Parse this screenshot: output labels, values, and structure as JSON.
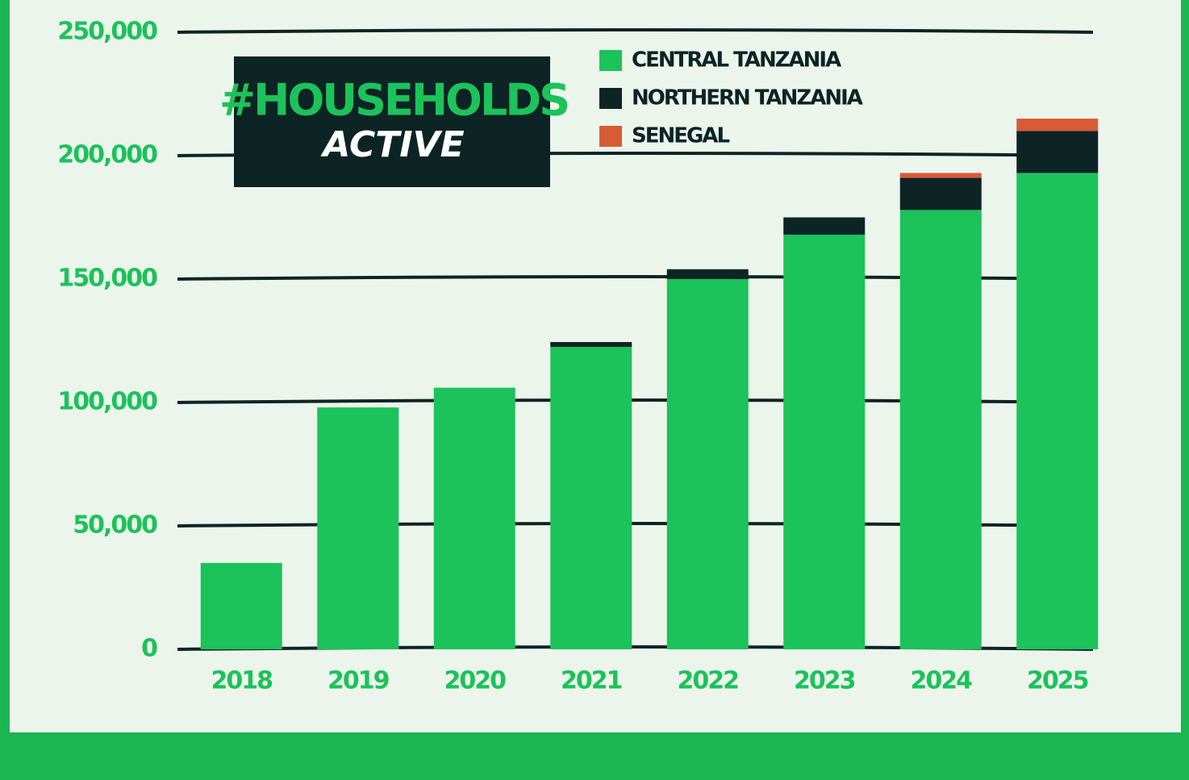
{
  "chart_data": {
    "type": "stacked-bar",
    "title": "#HOUSEHOLDS",
    "subtitle": "ACTIVE",
    "categories": [
      "2018",
      "2019",
      "2020",
      "2021",
      "2022",
      "2023",
      "2024",
      "2025"
    ],
    "series": [
      {
        "name": "CENTRAL TANZANIA",
        "color": "#1cc25a",
        "values": [
          35000,
          98000,
          106000,
          122500,
          150000,
          168000,
          178000,
          193000
        ]
      },
      {
        "name": "NORTHERN TANZANIA",
        "color": "#0d2424",
        "values": [
          0,
          0,
          0,
          2000,
          4000,
          7000,
          13000,
          17000
        ]
      },
      {
        "name": "SENEGAL",
        "color": "#d95b36",
        "values": [
          0,
          0,
          0,
          0,
          0,
          0,
          2000,
          5000
        ]
      }
    ],
    "ylim": [
      0,
      250000
    ],
    "yticks": [
      0,
      {
        "value": 50000,
        "label": "50,000"
      },
      {
        "value": 100000,
        "label": "100,000"
      },
      {
        "value": 150000,
        "label": "150,000"
      },
      {
        "value": 200000,
        "label": "200,000"
      },
      {
        "value": 250000,
        "label": "250,000"
      }
    ],
    "grid": true
  }
}
